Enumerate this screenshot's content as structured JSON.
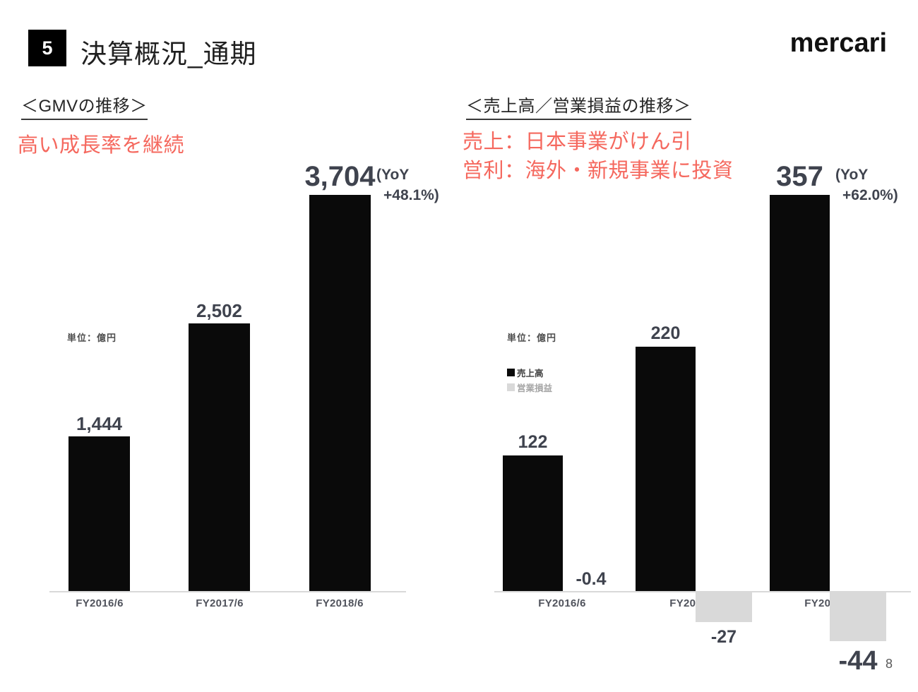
{
  "page": {
    "badge": "5",
    "title": "決算概況_通期",
    "logo": "mercari",
    "page_number": "8"
  },
  "colors": {
    "bar_black": "#0a0a0a",
    "bar_gray": "#d9d9d9",
    "accent_red": "#f5685e",
    "label_dark": "#3f434e",
    "axis_line": "#d9d9d9",
    "legend_muted": "#a6a6a6"
  },
  "chart_data": [
    {
      "type": "bar",
      "title": "＜GMVの推移＞",
      "annotations": [
        "高い成長率を継続"
      ],
      "unit": "単位：億円",
      "categories": [
        "FY2016/6",
        "FY2017/6",
        "FY2018/6"
      ],
      "values": [
        1444,
        2502,
        3704
      ],
      "value_labels": [
        "1,444",
        "2,502",
        "3,704"
      ],
      "yoy_note": [
        "(YoY",
        "+48.1%)"
      ],
      "bar_color": "#0a0a0a",
      "ylim": [
        0,
        3900
      ],
      "grid": false,
      "legend_position": "none"
    },
    {
      "type": "bar",
      "title": "＜売上高／営業損益の推移＞",
      "annotations": [
        "売上：日本事業がけん引",
        "営利：海外・新規事業に投資"
      ],
      "unit": "単位：億円",
      "categories": [
        "FY2016/6",
        "FY2017/6",
        "FY2018/6"
      ],
      "series": [
        {
          "name": "売上高",
          "color": "#0a0a0a",
          "values": [
            122,
            220,
            357
          ],
          "labels": [
            "122",
            "220",
            "357"
          ]
        },
        {
          "name": "営業損益",
          "color": "#d9d9d9",
          "values": [
            -0.4,
            -27,
            -44
          ],
          "labels": [
            "-0.4",
            "-27",
            "-44"
          ]
        }
      ],
      "yoy_note": [
        "(YoY",
        "+62.0%)"
      ],
      "ylim": [
        -80,
        400
      ],
      "grid": false,
      "legend_position": "left"
    }
  ]
}
